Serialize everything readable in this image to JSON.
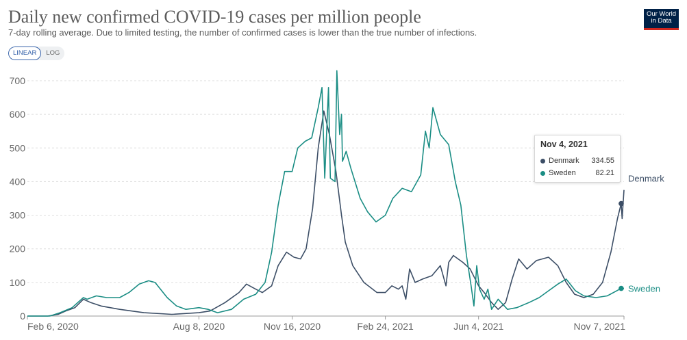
{
  "header": {
    "title": "Daily new confirmed COVID-19 cases per million people",
    "subtitle": "7-day rolling average. Due to limited testing, the number of confirmed cases is lower than the true number of infections.",
    "logo_line1": "Our World",
    "logo_line2": "in Data"
  },
  "scale_toggle": {
    "linear_label": "LINEAR",
    "log_label": "LOG",
    "selected": "LINEAR"
  },
  "tooltip": {
    "date": "Nov 4, 2021",
    "rows": [
      {
        "name": "Denmark",
        "value": "334.55"
      },
      {
        "name": "Sweden",
        "value": "82.21"
      }
    ]
  },
  "colors": {
    "denmark": "#3c4e66",
    "sweden": "#1a8d84",
    "grid": "#dddddd",
    "axis_text": "#666666",
    "brand": "#002147"
  },
  "chart_data": {
    "type": "line",
    "title": "Daily new confirmed COVID-19 cases per million people",
    "subtitle": "7-day rolling average. Due to limited testing, the number of confirmed cases is lower than the true number of infections.",
    "x_ticks": [
      {
        "date": "2020-02-06",
        "label": "Feb 6, 2020"
      },
      {
        "date": "2020-08-08",
        "label": "Aug 8, 2020"
      },
      {
        "date": "2020-11-16",
        "label": "Nov 16, 2020"
      },
      {
        "date": "2021-02-24",
        "label": "Feb 24, 2021"
      },
      {
        "date": "2021-06-04",
        "label": "Jun 4, 2021"
      },
      {
        "date": "2021-11-07",
        "label": "Nov 7, 2021"
      }
    ],
    "xlim": [
      "2020-02-06",
      "2021-11-07"
    ],
    "y_ticks": [
      0,
      100,
      200,
      300,
      400,
      500,
      600,
      700
    ],
    "ylim": [
      0,
      700
    ],
    "grid": "horizontal dashed",
    "legend": "inline labels at line ends",
    "series": [
      {
        "name": "Denmark",
        "points": [
          [
            "2020-02-06",
            0
          ],
          [
            "2020-02-28",
            0
          ],
          [
            "2020-03-10",
            5
          ],
          [
            "2020-03-18",
            15
          ],
          [
            "2020-03-28",
            25
          ],
          [
            "2020-04-06",
            50
          ],
          [
            "2020-04-14",
            40
          ],
          [
            "2020-04-25",
            30
          ],
          [
            "2020-05-15",
            20
          ],
          [
            "2020-06-10",
            10
          ],
          [
            "2020-07-10",
            5
          ],
          [
            "2020-08-08",
            10
          ],
          [
            "2020-08-20",
            15
          ],
          [
            "2020-09-05",
            40
          ],
          [
            "2020-09-20",
            70
          ],
          [
            "2020-09-28",
            95
          ],
          [
            "2020-10-08",
            80
          ],
          [
            "2020-10-15",
            70
          ],
          [
            "2020-10-25",
            90
          ],
          [
            "2020-11-01",
            150
          ],
          [
            "2020-11-10",
            190
          ],
          [
            "2020-11-18",
            175
          ],
          [
            "2020-11-25",
            170
          ],
          [
            "2020-12-01",
            200
          ],
          [
            "2020-12-08",
            320
          ],
          [
            "2020-12-14",
            500
          ],
          [
            "2020-12-20",
            610
          ],
          [
            "2020-12-26",
            540
          ],
          [
            "2021-01-02",
            430
          ],
          [
            "2021-01-08",
            300
          ],
          [
            "2021-01-12",
            220
          ],
          [
            "2021-01-20",
            150
          ],
          [
            "2021-02-01",
            100
          ],
          [
            "2021-02-15",
            70
          ],
          [
            "2021-02-24",
            70
          ],
          [
            "2021-03-03",
            90
          ],
          [
            "2021-03-10",
            80
          ],
          [
            "2021-03-14",
            90
          ],
          [
            "2021-03-18",
            50
          ],
          [
            "2021-03-22",
            140
          ],
          [
            "2021-03-28",
            100
          ],
          [
            "2021-04-05",
            110
          ],
          [
            "2021-04-15",
            120
          ],
          [
            "2021-04-24",
            150
          ],
          [
            "2021-04-30",
            90
          ],
          [
            "2021-05-03",
            160
          ],
          [
            "2021-05-08",
            180
          ],
          [
            "2021-05-18",
            160
          ],
          [
            "2021-05-26",
            140
          ],
          [
            "2021-06-04",
            90
          ],
          [
            "2021-06-10",
            70
          ],
          [
            "2021-06-18",
            40
          ],
          [
            "2021-06-25",
            20
          ],
          [
            "2021-07-03",
            40
          ],
          [
            "2021-07-10",
            110
          ],
          [
            "2021-07-17",
            170
          ],
          [
            "2021-07-26",
            140
          ],
          [
            "2021-08-05",
            165
          ],
          [
            "2021-08-18",
            175
          ],
          [
            "2021-08-28",
            150
          ],
          [
            "2021-09-06",
            100
          ],
          [
            "2021-09-15",
            65
          ],
          [
            "2021-09-25",
            55
          ],
          [
            "2021-10-05",
            65
          ],
          [
            "2021-10-15",
            100
          ],
          [
            "2021-10-24",
            190
          ],
          [
            "2021-10-31",
            290
          ],
          [
            "2021-11-04",
            334.55
          ],
          [
            "2021-11-05",
            290
          ],
          [
            "2021-11-07",
            375
          ]
        ]
      },
      {
        "name": "Sweden",
        "points": [
          [
            "2020-02-06",
            0
          ],
          [
            "2020-03-01",
            0
          ],
          [
            "2020-03-12",
            10
          ],
          [
            "2020-03-25",
            25
          ],
          [
            "2020-04-06",
            55
          ],
          [
            "2020-04-10",
            50
          ],
          [
            "2020-04-20",
            60
          ],
          [
            "2020-05-01",
            55
          ],
          [
            "2020-05-15",
            55
          ],
          [
            "2020-05-25",
            70
          ],
          [
            "2020-06-05",
            95
          ],
          [
            "2020-06-15",
            105
          ],
          [
            "2020-06-22",
            100
          ],
          [
            "2020-07-05",
            55
          ],
          [
            "2020-07-15",
            30
          ],
          [
            "2020-07-25",
            20
          ],
          [
            "2020-08-08",
            25
          ],
          [
            "2020-08-18",
            20
          ],
          [
            "2020-08-28",
            10
          ],
          [
            "2020-09-12",
            20
          ],
          [
            "2020-09-25",
            50
          ],
          [
            "2020-10-08",
            65
          ],
          [
            "2020-10-18",
            100
          ],
          [
            "2020-10-25",
            190
          ],
          [
            "2020-11-01",
            330
          ],
          [
            "2020-11-08",
            430
          ],
          [
            "2020-11-16",
            430
          ],
          [
            "2020-11-22",
            500
          ],
          [
            "2020-11-30",
            520
          ],
          [
            "2020-12-07",
            530
          ],
          [
            "2020-12-14",
            620
          ],
          [
            "2020-12-18",
            680
          ],
          [
            "2020-12-21",
            410
          ],
          [
            "2020-12-25",
            680
          ],
          [
            "2020-12-27",
            410
          ],
          [
            "2021-01-01",
            400
          ],
          [
            "2021-01-03",
            730
          ],
          [
            "2021-01-06",
            540
          ],
          [
            "2021-01-08",
            600
          ],
          [
            "2021-01-09",
            460
          ],
          [
            "2021-01-13",
            490
          ],
          [
            "2021-01-18",
            440
          ],
          [
            "2021-01-28",
            350
          ],
          [
            "2021-02-05",
            310
          ],
          [
            "2021-02-14",
            280
          ],
          [
            "2021-02-24",
            300
          ],
          [
            "2021-03-04",
            350
          ],
          [
            "2021-03-14",
            380
          ],
          [
            "2021-03-24",
            370
          ],
          [
            "2021-04-03",
            420
          ],
          [
            "2021-04-08",
            550
          ],
          [
            "2021-04-12",
            500
          ],
          [
            "2021-04-16",
            620
          ],
          [
            "2021-04-20",
            580
          ],
          [
            "2021-04-24",
            540
          ],
          [
            "2021-05-03",
            510
          ],
          [
            "2021-05-10",
            400
          ],
          [
            "2021-05-16",
            330
          ],
          [
            "2021-05-22",
            180
          ],
          [
            "2021-05-27",
            90
          ],
          [
            "2021-05-30",
            30
          ],
          [
            "2021-06-02",
            150
          ],
          [
            "2021-06-05",
            80
          ],
          [
            "2021-06-10",
            50
          ],
          [
            "2021-06-14",
            80
          ],
          [
            "2021-06-18",
            20
          ],
          [
            "2021-06-25",
            50
          ],
          [
            "2021-07-05",
            20
          ],
          [
            "2021-07-15",
            25
          ],
          [
            "2021-07-28",
            40
          ],
          [
            "2021-08-08",
            55
          ],
          [
            "2021-08-18",
            75
          ],
          [
            "2021-08-28",
            95
          ],
          [
            "2021-09-06",
            110
          ],
          [
            "2021-09-16",
            75
          ],
          [
            "2021-09-25",
            60
          ],
          [
            "2021-10-08",
            55
          ],
          [
            "2021-10-20",
            60
          ],
          [
            "2021-11-04",
            82.21
          ],
          [
            "2021-11-07",
            82
          ]
        ]
      }
    ]
  }
}
